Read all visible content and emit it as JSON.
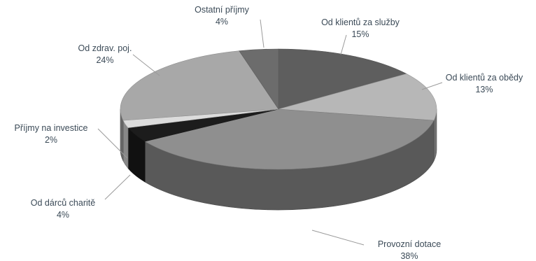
{
  "chart_data": {
    "type": "pie",
    "title": "",
    "style": "3d",
    "slices": [
      {
        "label": "Od klientů za služby",
        "value": 15,
        "value_label": "15%",
        "color": "#5e5e5e"
      },
      {
        "label": "Od klientů za obědy",
        "value": 13,
        "value_label": "13%",
        "color": "#b7b7b7"
      },
      {
        "label": "Provozní dotace",
        "value": 38,
        "value_label": "38%",
        "color": "#8f8f8f"
      },
      {
        "label": "Od dárců charitě",
        "value": 4,
        "value_label": "4%",
        "color": "#1c1c1c"
      },
      {
        "label": "Příjmy na investice",
        "value": 2,
        "value_label": "2%",
        "color": "#dcdcdc"
      },
      {
        "label": "Od zdrav. poj.",
        "value": 24,
        "value_label": "24%",
        "color": "#a8a8a8"
      },
      {
        "label": "Ostatní příjmy",
        "value": 4,
        "value_label": "4%",
        "color": "#6c6c6c"
      }
    ],
    "legend": "none"
  }
}
